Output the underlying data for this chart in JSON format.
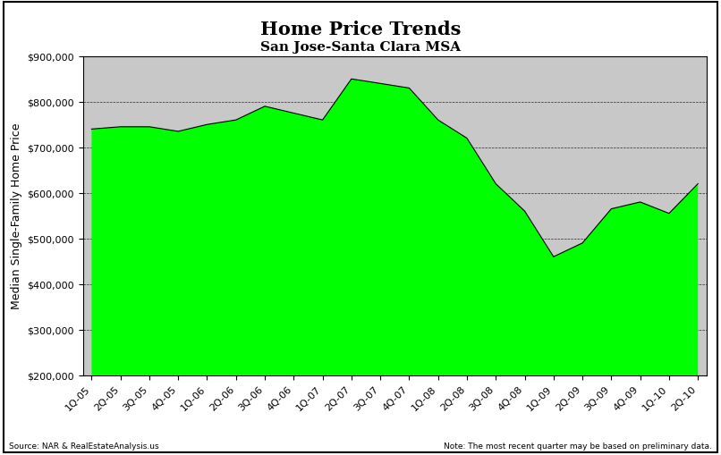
{
  "title": "Home Price Trends",
  "subtitle": "San Jose-Santa Clara MSA",
  "ylabel": "Median Single-Family Home Price",
  "source_left": "Source: NAR & RealEstateAnalysis.us",
  "source_right": "Note: The most recent quarter may be based on preliminary data.",
  "xlabels": [
    "1Q-05",
    "2Q-05",
    "3Q-05",
    "4Q-05",
    "1Q-06",
    "2Q-06",
    "3Q-06",
    "4Q-06",
    "1Q-07",
    "2Q-07",
    "3Q-07",
    "4Q-07",
    "1Q-08",
    "2Q-08",
    "3Q-08",
    "4Q-08",
    "1Q-09",
    "2Q-09",
    "3Q-09",
    "4Q-09",
    "1Q-10",
    "2Q-10"
  ],
  "values": [
    740000,
    745000,
    745000,
    735000,
    750000,
    760000,
    790000,
    775000,
    760000,
    850000,
    840000,
    830000,
    760000,
    720000,
    620000,
    560000,
    460000,
    490000,
    565000,
    580000,
    555000,
    620000
  ],
  "ylim": [
    200000,
    900000
  ],
  "yticks": [
    200000,
    300000,
    400000,
    500000,
    600000,
    700000,
    800000,
    900000
  ],
  "fill_color": "#00FF00",
  "line_color": "#000000",
  "bg_color": "#C8C8C8",
  "title_fontsize": 15,
  "subtitle_fontsize": 11,
  "tick_fontsize": 8,
  "ylabel_fontsize": 9
}
